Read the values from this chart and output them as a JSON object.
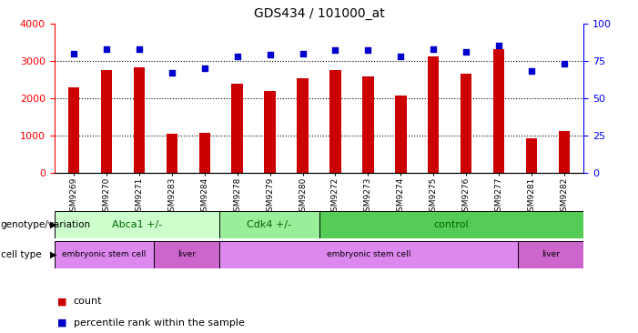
{
  "title": "GDS434 / 101000_at",
  "samples": [
    "GSM9269",
    "GSM9270",
    "GSM9271",
    "GSM9283",
    "GSM9284",
    "GSM9278",
    "GSM9279",
    "GSM9280",
    "GSM9272",
    "GSM9273",
    "GSM9274",
    "GSM9275",
    "GSM9276",
    "GSM9277",
    "GSM9281",
    "GSM9282"
  ],
  "counts": [
    2300,
    2750,
    2820,
    1050,
    1080,
    2380,
    2200,
    2540,
    2760,
    2580,
    2080,
    3120,
    2660,
    3300,
    930,
    1130
  ],
  "percentiles": [
    80,
    83,
    83,
    67,
    70,
    78,
    79,
    80,
    82,
    82,
    78,
    83,
    81,
    85,
    68,
    73
  ],
  "bar_color": "#cc0000",
  "dot_color": "#0000cc",
  "ylim_left": [
    0,
    4000
  ],
  "ylim_right": [
    0,
    100
  ],
  "yticks_left": [
    0,
    1000,
    2000,
    3000,
    4000
  ],
  "yticks_right": [
    0,
    25,
    50,
    75,
    100
  ],
  "grid_lines": [
    1000,
    2000,
    3000
  ],
  "genotype_groups": [
    {
      "label": "Abca1 +/-",
      "start": 0,
      "end": 5,
      "color": "#ccffcc"
    },
    {
      "label": "Cdk4 +/-",
      "start": 5,
      "end": 8,
      "color": "#99ee99"
    },
    {
      "label": "control",
      "start": 8,
      "end": 16,
      "color": "#55cc55"
    }
  ],
  "celltype_groups": [
    {
      "label": "embryonic stem cell",
      "start": 0,
      "end": 3,
      "color": "#dd88ee"
    },
    {
      "label": "liver",
      "start": 3,
      "end": 5,
      "color": "#cc66cc"
    },
    {
      "label": "embryonic stem cell",
      "start": 5,
      "end": 14,
      "color": "#dd88ee"
    },
    {
      "label": "liver",
      "start": 14,
      "end": 16,
      "color": "#cc66cc"
    }
  ],
  "background_color": "#ffffff",
  "tick_label_fontsize": 6.5,
  "title_fontsize": 10,
  "row_label_fontsize": 7.5,
  "annotation_fontsize": 8
}
